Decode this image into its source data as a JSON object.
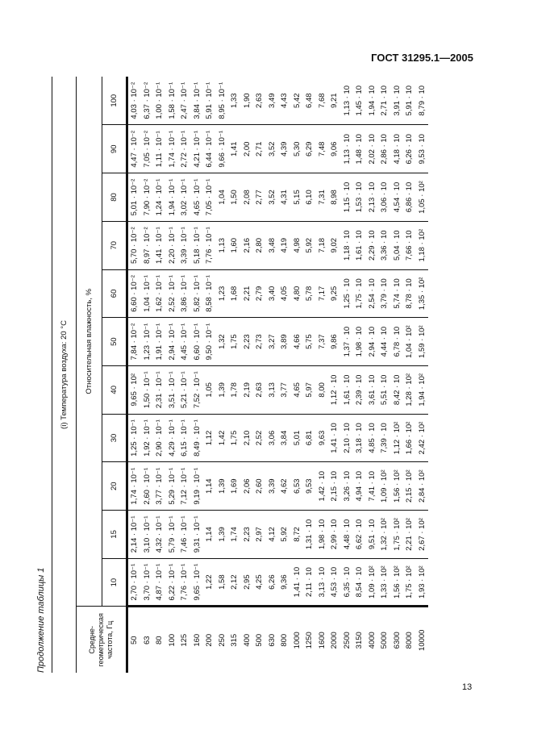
{
  "header": {
    "standard": "ГОСТ 31295.1—2005"
  },
  "page_number": "13",
  "table": {
    "caption": "Продолжение таблицы 1",
    "section_title": "(i) Температура воздуха: 20 °С",
    "humidity_title": "Относительная влажность, %",
    "freq_header": "Средне-геометрическая частота, Гц",
    "humidity": [
      "10",
      "15",
      "20",
      "30",
      "40",
      "50",
      "60",
      "70",
      "80",
      "90",
      "100"
    ],
    "rows": [
      {
        "freq": "50",
        "values": [
          "2,70 · 10⁻¹",
          "2,14 · 10⁻¹",
          "1,74 · 10⁻¹",
          "1,25 · 10⁻¹",
          "9,65 · 10²",
          "7,84 · 10⁻²",
          "6,60 · 10⁻²",
          "5,70 · 10⁻²",
          "5,01 · 10⁻²",
          "4,47 · 10⁻²",
          "4,03 · 10⁻²"
        ]
      },
      {
        "freq": "63",
        "values": [
          "3,70 · 10⁻¹",
          "3,10 · 10⁻¹",
          "2,60 · 10⁻¹",
          "1,92 · 10⁻¹",
          "1,50 · 10⁻¹",
          "1,23 · 10⁻¹",
          "1,04 · 10⁻¹",
          "8,97 · 10⁻²",
          "7,90 · 10⁻²",
          "7,05 · 10⁻²",
          "6,37 · 10⁻²"
        ]
      },
      {
        "freq": "80",
        "values": [
          "4,87 · 10⁻¹",
          "4,32 · 10⁻¹",
          "3,77 · 10⁻¹",
          "2,90 · 10⁻¹",
          "2,31 · 10⁻¹",
          "1,91 · 10⁻¹",
          "1,62 · 10⁻¹",
          "1,41 · 10⁻¹",
          "1,24 · 10⁻¹",
          "1,11 · 10⁻¹",
          "1,00 · 10⁻¹"
        ]
      },
      {
        "freq": "100",
        "values": [
          "6,22 · 10⁻¹",
          "5,79 · 10⁻¹",
          "5,29 · 10⁻¹",
          "4,29 · 10⁻¹",
          "3,51 · 10⁻¹",
          "2,94 · 10⁻¹",
          "2,52 · 10⁻¹",
          "2,20 · 10⁻¹",
          "1,94 · 10⁻¹",
          "1,74 · 10⁻¹",
          "1,58 · 10⁻¹"
        ]
      },
      {
        "freq": "125",
        "values": [
          "7,76 · 10⁻¹",
          "7,46 · 10⁻¹",
          "7,12 · 10⁻¹",
          "6,15 · 10⁻¹",
          "5,21 · 10⁻¹",
          "4,45 · 10⁻¹",
          "3,86 · 10⁻¹",
          "3,39 · 10⁻¹",
          "3,02 · 10⁻¹",
          "2,72 · 10⁻¹",
          "2,47 · 10⁻¹"
        ]
      },
      {
        "freq": "160",
        "values": [
          "9,65 · 10⁻¹",
          "9,31 · 10⁻¹",
          "9,19 · 10⁻¹",
          "8,49 · 10⁻¹",
          "7,52 · 10⁻¹",
          "6,60 · 10⁻¹",
          "5,82 · 10⁻¹",
          "5,18 · 10⁻¹",
          "4,65 · 10⁻¹",
          "4,21 · 10⁻¹",
          "3,84 · 10⁻¹"
        ]
      },
      {
        "freq": "200",
        "values": [
          "1,22",
          "1,14",
          "1,14",
          "1,12",
          "1,05",
          "9,50 · 10⁻¹",
          "8,58 · 10⁻¹",
          "7,76 · 10⁻¹",
          "7,05 · 10⁻¹",
          "6,44 · 10⁻¹",
          "5,91 · 10⁻¹"
        ]
      },
      {
        "freq": "250",
        "values": [
          "1,58",
          "1,39",
          "1,39",
          "1,42",
          "1,39",
          "1,32",
          "1,23",
          "1,13",
          "1,04",
          "9,66 · 10⁻¹",
          "8,95 · 10⁻¹"
        ]
      },
      {
        "freq": "315",
        "values": [
          "2,12",
          "1,74",
          "1,69",
          "1,75",
          "1,78",
          "1,75",
          "1,68",
          "1,60",
          "1,50",
          "1,41",
          "1,33"
        ]
      },
      {
        "freq": "400",
        "values": [
          "2,95",
          "2,23",
          "2,06",
          "2,10",
          "2,19",
          "2,23",
          "2,21",
          "2,16",
          "2,08",
          "2,00",
          "1,90"
        ]
      },
      {
        "freq": "500",
        "values": [
          "4,25",
          "2,97",
          "2,60",
          "2,52",
          "2,63",
          "2,73",
          "2,79",
          "2,80",
          "2,77",
          "2,71",
          "2,63"
        ]
      },
      {
        "freq": "630",
        "values": [
          "6,26",
          "4,12",
          "3,39",
          "3,06",
          "3,13",
          "3,27",
          "3,40",
          "3,48",
          "3,52",
          "3,52",
          "3,49"
        ]
      },
      {
        "freq": "800",
        "values": [
          "9,36",
          "5,92",
          "4,62",
          "3,84",
          "3,77",
          "3,89",
          "4,05",
          "4,19",
          "4,31",
          "4,39",
          "4,43"
        ]
      },
      {
        "freq": "1000",
        "values": [
          "1,41 · 10",
          "8,72",
          "6,53",
          "5,01",
          "4,65",
          "4,66",
          "4,80",
          "4,98",
          "5,15",
          "5,30",
          "5,42"
        ]
      },
      {
        "freq": "1250",
        "values": [
          "2,11 · 10",
          "1,31 · 10",
          "9,53",
          "6,81",
          "5,97",
          "5,75",
          "5,78",
          "5,92",
          "6,10",
          "6,29",
          "6,48"
        ]
      },
      {
        "freq": "1600",
        "values": [
          "3,13 · 10",
          "1,98 · 10",
          "1,42 · 10",
          "9,63",
          "8,00",
          "7,37",
          "7,17",
          "7,18",
          "7,31",
          "7,48",
          "7,68"
        ]
      },
      {
        "freq": "2000",
        "values": [
          "4,53 · 10",
          "2,99 · 10",
          "2,15 · 10",
          "1,41 · 10",
          "1,12 · 10",
          "9,86",
          "9,25",
          "9,02",
          "8,98",
          "9,06",
          "9,21"
        ]
      },
      {
        "freq": "2500",
        "values": [
          "6,35 · 10",
          "4,48 · 10",
          "3,26 · 10",
          "2,10 · 10",
          "1,61 · 10",
          "1,37 · 10",
          "1,25 · 10",
          "1,18 · 10",
          "1,15 · 10",
          "1,13 · 10",
          "1,13 · 10"
        ]
      },
      {
        "freq": "3150",
        "values": [
          "8,54 · 10",
          "6,62 · 10",
          "4,94 · 10",
          "3,18 · 10",
          "2,39 · 10",
          "1,98 · 10",
          "1,75 · 10",
          "1,61 · 10",
          "1,53 · 10",
          "1,48 · 10",
          "1,45 · 10"
        ]
      },
      {
        "freq": "4000",
        "values": [
          "1,09 · 10²",
          "9,51 · 10",
          "7,41 · 10",
          "4,85 · 10",
          "3,61 · 10",
          "2,94 · 10",
          "2,54 · 10",
          "2,29 · 10",
          "2,13 · 10",
          "2,02 · 10",
          "1,94 · 10"
        ]
      },
      {
        "freq": "5000",
        "values": [
          "1,33 · 10²",
          "1,32 · 10²",
          "1,09 · 10²",
          "7,39 · 10",
          "5,51 · 10",
          "4,44 · 10",
          "3,79 · 10",
          "3,36 · 10",
          "3,06 · 10",
          "2,86 · 10",
          "2,71 · 10"
        ]
      },
      {
        "freq": "6300",
        "values": [
          "1,56 · 10²",
          "1,75 · 10²",
          "1,56 · 10²",
          "1,12 · 10²",
          "8,42 · 10",
          "6,78 · 10",
          "5,74 · 10",
          "5,04 · 10",
          "4,54 · 10",
          "4,18 · 10",
          "3,91 · 10"
        ]
      },
      {
        "freq": "8000",
        "values": [
          "1,75 · 10²",
          "2,21 · 10²",
          "2,15 · 10²",
          "1,66 · 10²",
          "1,28 · 10²",
          "1,04 · 10²",
          "8,78 · 10",
          "7,66 · 10",
          "6,86 · 10",
          "6,26 · 10",
          "5,91 · 10"
        ]
      },
      {
        "freq": "10000",
        "values": [
          "1,93 · 10²",
          "2,67 · 10²",
          "2,84 · 10²",
          "2,42 · 10²",
          "1,94 · 10²",
          "1,59 · 10²",
          "1,35 · 10²",
          "1,18 · 10²",
          "1,05 · 10²",
          "9,53 · 10",
          "8,79 · 10"
        ]
      }
    ]
  }
}
